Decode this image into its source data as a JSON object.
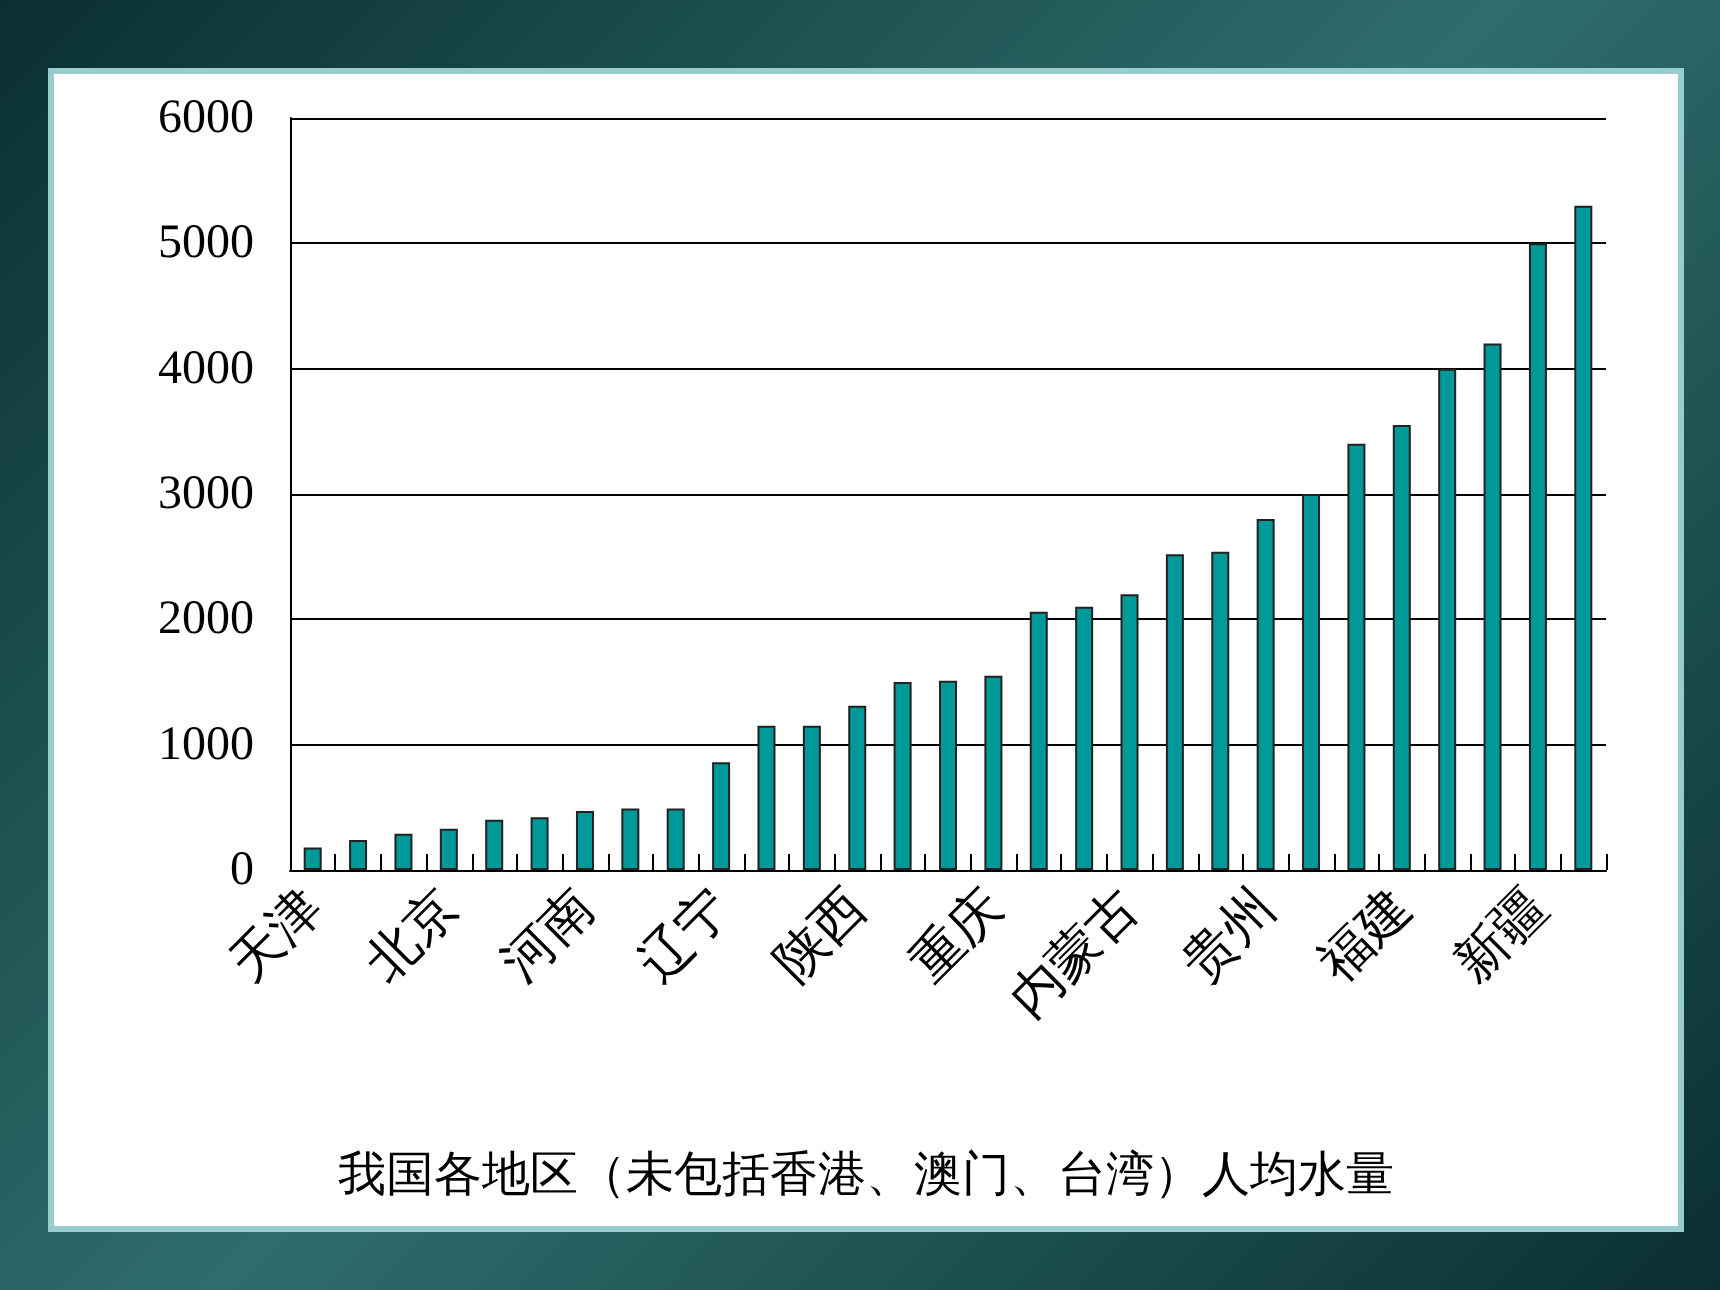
{
  "chart_data": {
    "type": "bar",
    "title": "我国各地区（未包括香港、澳门、台湾）人均水量",
    "categories": [
      "天津",
      null,
      null,
      "北京",
      null,
      null,
      "河南",
      null,
      null,
      "辽宁",
      null,
      null,
      "陕西",
      null,
      null,
      "重庆",
      null,
      null,
      "内蒙古",
      null,
      null,
      "贵州",
      null,
      null,
      "福建",
      null,
      null,
      "新疆",
      null
    ],
    "values": [
      180,
      240,
      290,
      330,
      400,
      420,
      470,
      490,
      490,
      860,
      1150,
      1150,
      1310,
      1500,
      1510,
      1550,
      2060,
      2100,
      2200,
      2520,
      2540,
      2800,
      3000,
      3400,
      3550,
      4000,
      4200,
      5000,
      5300
    ],
    "color": "#009999",
    "ylim": [
      0,
      6000
    ],
    "yticks": [
      0,
      1000,
      2000,
      3000,
      4000,
      5000,
      6000
    ],
    "grid": "y"
  }
}
